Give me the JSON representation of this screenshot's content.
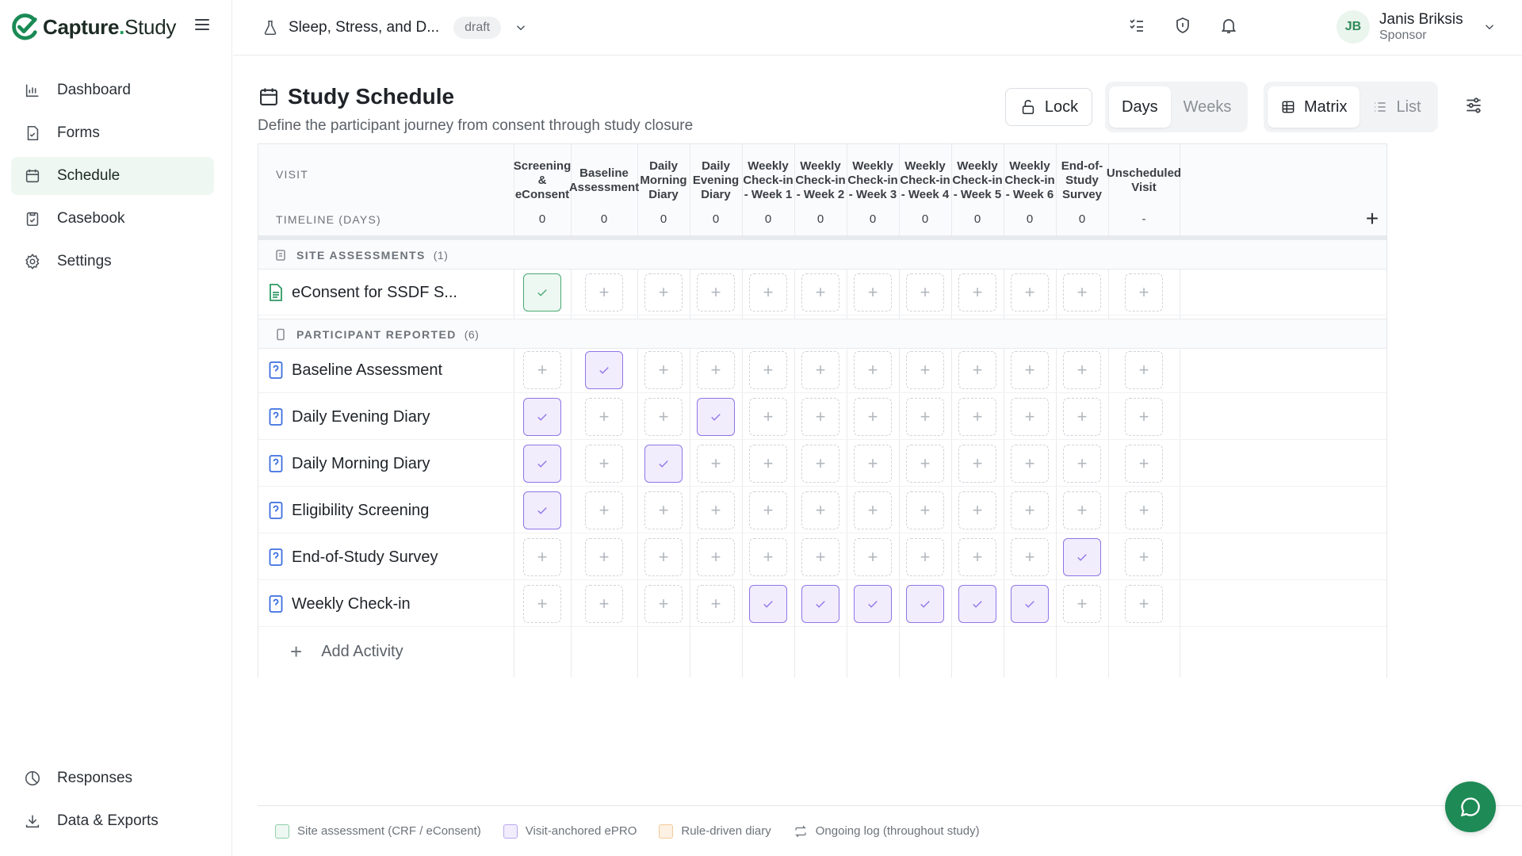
{
  "brand": {
    "name_bold": "Capture",
    "dot": ".",
    "name_light": "Study"
  },
  "nav": {
    "items": [
      {
        "label": "Dashboard",
        "icon": "bar-chart-icon"
      },
      {
        "label": "Forms",
        "icon": "form-icon"
      },
      {
        "label": "Schedule",
        "icon": "calendar-icon",
        "active": true
      },
      {
        "label": "Casebook",
        "icon": "clipboard-icon"
      },
      {
        "label": "Settings",
        "icon": "gear-icon"
      }
    ],
    "bottom": [
      {
        "label": "Responses",
        "icon": "pie-icon"
      },
      {
        "label": "Data & Exports",
        "icon": "download-icon"
      }
    ]
  },
  "topbar": {
    "study_name": "Sleep, Stress, and D...",
    "status": "draft"
  },
  "user": {
    "initials": "JB",
    "name": "Janis Briksis",
    "role": "Sponsor"
  },
  "page": {
    "title": "Study Schedule",
    "subtitle": "Define the participant journey from consent through study closure",
    "lock_label": "Lock",
    "view_days": "Days",
    "view_weeks": "Weeks",
    "mode_matrix": "Matrix",
    "mode_list": "List"
  },
  "grid": {
    "visit_label": "VISIT",
    "timeline_label": "TIMELINE (DAYS)",
    "columns": [
      {
        "lines": [
          "Screening",
          "&",
          "eConsent"
        ],
        "day": "0"
      },
      {
        "lines": [
          "Baseline",
          "Assessment"
        ],
        "day": "0"
      },
      {
        "lines": [
          "Daily",
          "Morning",
          "Diary"
        ],
        "day": "0"
      },
      {
        "lines": [
          "Daily",
          "Evening",
          "Diary"
        ],
        "day": "0"
      },
      {
        "lines": [
          "Weekly",
          "Check-in",
          "- Week 1"
        ],
        "day": "0"
      },
      {
        "lines": [
          "Weekly",
          "Check-in",
          "- Week 2"
        ],
        "day": "0"
      },
      {
        "lines": [
          "Weekly",
          "Check-in",
          "- Week 3"
        ],
        "day": "0"
      },
      {
        "lines": [
          "Weekly",
          "Check-in",
          "- Week 4"
        ],
        "day": "0"
      },
      {
        "lines": [
          "Weekly",
          "Check-in",
          "- Week 5"
        ],
        "day": "0"
      },
      {
        "lines": [
          "Weekly",
          "Check-in",
          "- Week 6"
        ],
        "day": "0"
      },
      {
        "lines": [
          "End-of-",
          "Study",
          "Survey"
        ],
        "day": "0"
      },
      {
        "lines": [
          "Unscheduled",
          "Visit"
        ],
        "day": "-"
      }
    ],
    "add_column_symbol": "+",
    "sections": [
      {
        "label": "SITE ASSESSMENTS",
        "count": "(1)",
        "rows": [
          {
            "name": "eConsent for SSDF S...",
            "kind": "site",
            "checks": [
              0
            ]
          }
        ]
      },
      {
        "label": "PARTICIPANT REPORTED",
        "count": "(6)",
        "rows": [
          {
            "name": "Baseline Assessment",
            "kind": "epro",
            "checks": [
              1
            ]
          },
          {
            "name": "Daily Evening Diary",
            "kind": "epro",
            "checks": [
              0,
              3
            ]
          },
          {
            "name": "Daily Morning Diary",
            "kind": "epro",
            "checks": [
              0,
              2
            ]
          },
          {
            "name": "Eligibility Screening",
            "kind": "epro",
            "checks": [
              0
            ]
          },
          {
            "name": "End-of-Study Survey",
            "kind": "epro",
            "checks": [
              10
            ]
          },
          {
            "name": "Weekly Check-in",
            "kind": "epro",
            "checks": [
              4,
              5,
              6,
              7,
              8,
              9
            ]
          }
        ]
      }
    ],
    "add_activity": "Add Activity"
  },
  "legend": [
    {
      "label": "Site assessment (CRF / eConsent)",
      "swatch": "#eef8f2",
      "border": "#8fcfa9"
    },
    {
      "label": "Visit-anchored ePRO",
      "swatch": "#f1edfd",
      "border": "#b9a8f0"
    },
    {
      "label": "Rule-driven diary",
      "swatch": "#fdf1e3",
      "border": "#f2c99a"
    },
    {
      "label": "Ongoing log (throughout study)",
      "icon": "repeat-icon"
    }
  ],
  "colors": {
    "accent": "#1e8a56",
    "epro": "#8f75e6",
    "site": "#4aa874"
  }
}
